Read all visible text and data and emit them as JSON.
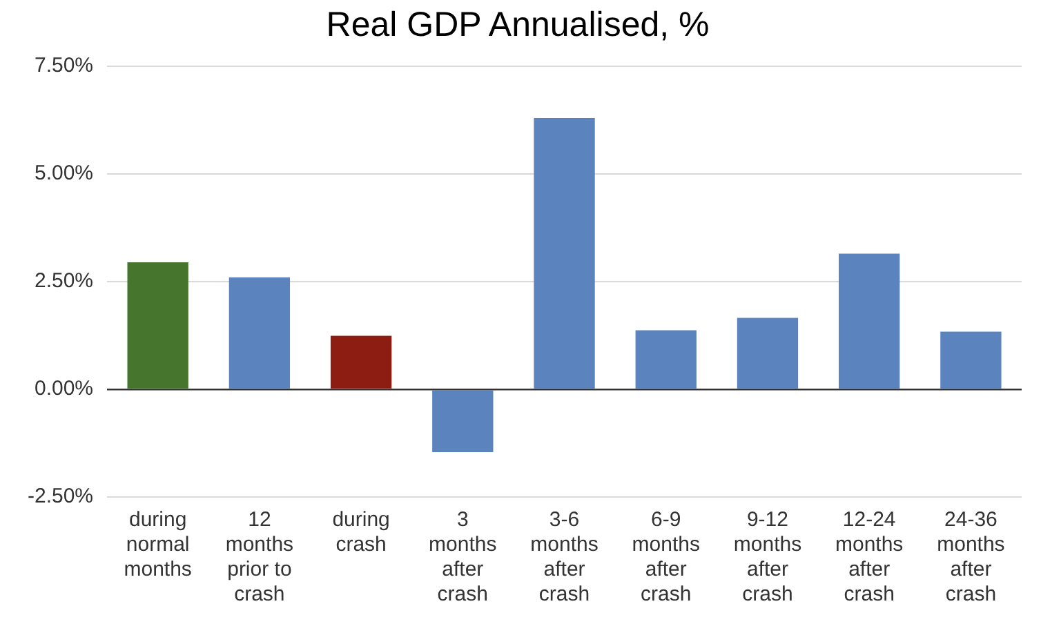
{
  "chart_data": {
    "type": "bar",
    "title": "Real GDP Annualised, %",
    "categories": [
      "during\nnormal\nmonths",
      "12\nmonths\nprior to\ncrash",
      "during\ncrash",
      "3\nmonths\nafter\ncrash",
      "3-6\nmonths\nafter\ncrash",
      "6-9\nmonths\nafter\ncrash",
      "9-12\nmonths\nafter\ncrash",
      "12-24\nmonths\nafter\ncrash",
      "24-36\nmonths\nafter\ncrash"
    ],
    "values": [
      2.95,
      2.6,
      1.24,
      -1.46,
      6.3,
      1.37,
      1.66,
      3.15,
      1.34
    ],
    "colors": [
      "#46752e",
      "#5b83be",
      "#8d1c12",
      "#5b83be",
      "#5b83be",
      "#5b83be",
      "#5b83be",
      "#5b83be",
      "#5b83be"
    ],
    "ylim": [
      -2.5,
      7.5
    ],
    "yticks": [
      {
        "value": -2.5,
        "label": "-2.50%"
      },
      {
        "value": 0,
        "label": "0.00%"
      },
      {
        "value": 2.5,
        "label": "2.50%"
      },
      {
        "value": 5,
        "label": "5.00%"
      },
      {
        "value": 7.5,
        "label": "7.50%"
      }
    ],
    "grid": "y"
  }
}
